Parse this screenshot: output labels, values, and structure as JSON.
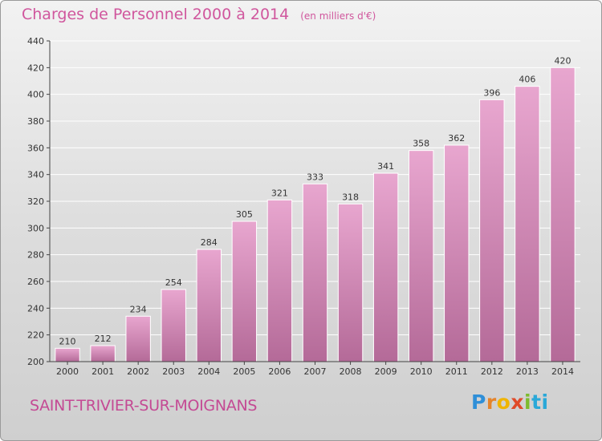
{
  "header": {
    "title": "Charges de Personnel 2000 à 2014",
    "subtitle": "(en milliers d'€)"
  },
  "footer": {
    "city": "SAINT-TRIVIER-SUR-MOIGNANS",
    "logo": [
      "P",
      "r",
      "o",
      "x",
      "i",
      "ti"
    ]
  },
  "colors": {
    "title": "#d0569d",
    "bar_top": "#e8a6cf",
    "bar_bottom": "#b46a98"
  },
  "chart_data": {
    "type": "bar",
    "title": "Charges de Personnel 2000 à 2014",
    "xlabel": "",
    "ylabel": "",
    "ylim": [
      200,
      440
    ],
    "yticks": [
      200,
      220,
      240,
      260,
      280,
      300,
      320,
      340,
      360,
      380,
      400,
      420,
      440
    ],
    "grid": true,
    "categories": [
      "2000",
      "2001",
      "2002",
      "2003",
      "2004",
      "2005",
      "2006",
      "2007",
      "2008",
      "2009",
      "2010",
      "2011",
      "2012",
      "2013",
      "2014"
    ],
    "values": [
      210,
      212,
      234,
      254,
      284,
      305,
      321,
      333,
      318,
      341,
      358,
      362,
      396,
      406,
      420
    ]
  }
}
